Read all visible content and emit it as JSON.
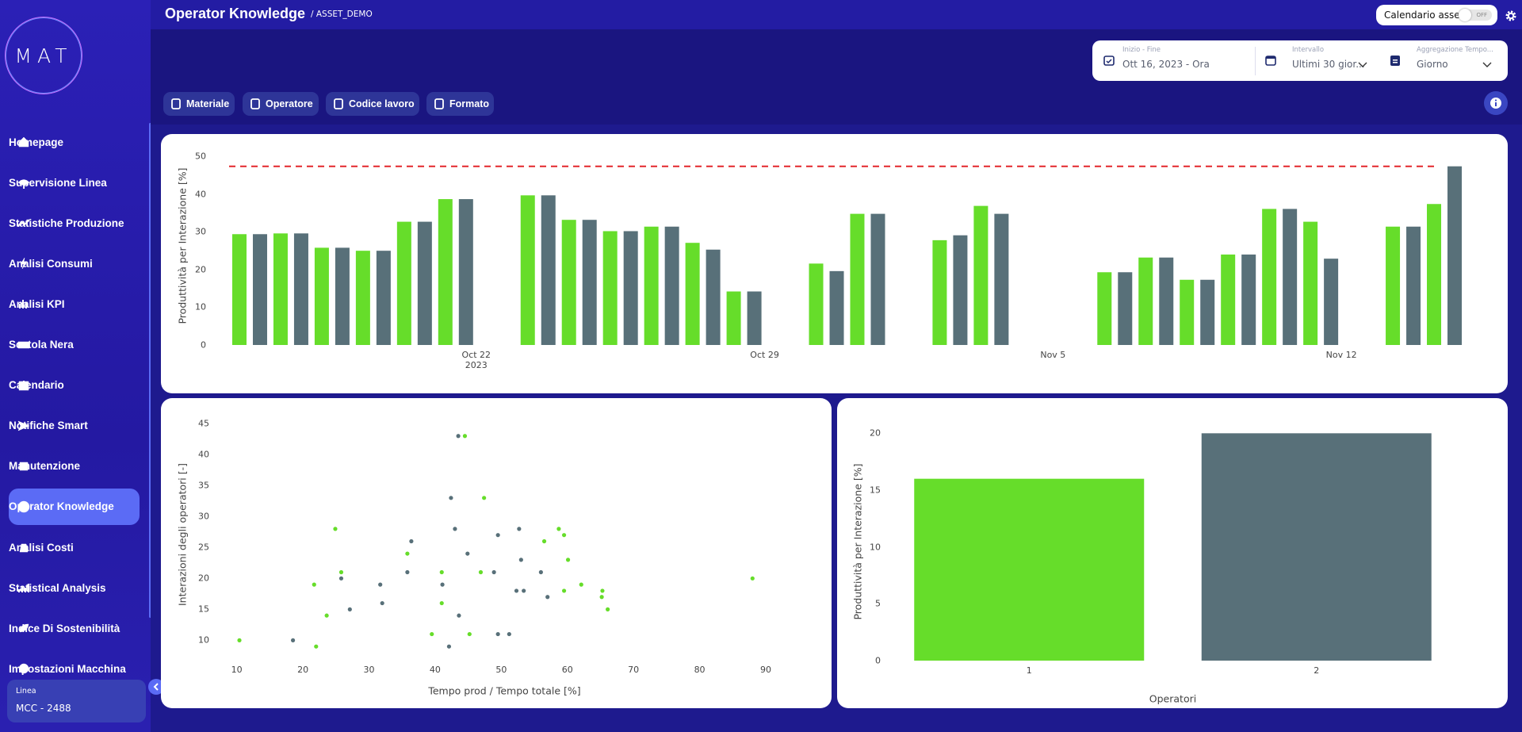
{
  "header": {
    "title": "Operator Knowledge",
    "subtitle": "/ ASSET_DEMO",
    "toggle_label": "Calendario asset",
    "toggle_state": "OFF"
  },
  "sidebar": {
    "logo": "MAT",
    "items": [
      "Homepage",
      "Supervisione Linea",
      "Statistiche Produzione",
      "Analisi Consumi",
      "Analisi KPI",
      "Scatola Nera",
      "Calendario",
      "Notifiche Smart",
      "Manutenzione",
      "Operator Knowledge",
      "Analisi Costi",
      "Statistical Analysis",
      "Indice Di Sostenibilità",
      "Impostazioni Macchina"
    ],
    "active_index": 9,
    "line_label": "Linea",
    "line_value": "MCC - 2488"
  },
  "filters": {
    "date_label": "Inizio - Fine",
    "date_value": "Ott 16, 2023 - Ora",
    "interval_label": "Intervallo",
    "interval_value": "Ultimi 30 gior...",
    "aggregation_label": "Aggregazione Tempo...",
    "aggregation_value": "Giorno"
  },
  "chips": [
    "Materiale",
    "Operatore",
    "Codice lavoro",
    "Formato"
  ],
  "chart_data": [
    {
      "type": "bar",
      "y_label": "Produttività per Interazione [%]",
      "x": [
        "2023-10-16",
        "2023-10-17",
        "2023-10-18",
        "2023-10-19",
        "2023-10-20",
        "2023-10-21",
        "2023-10-23",
        "2023-10-24",
        "2023-10-25",
        "2023-10-26",
        "2023-10-27",
        "2023-10-28",
        "2023-10-30",
        "2023-10-31",
        "2023-11-02",
        "2023-11-03",
        "2023-11-06",
        "2023-11-07",
        "2023-11-08",
        "2023-11-09",
        "2023-11-10",
        "2023-11-11",
        "2023-11-13",
        "2023-11-14"
      ],
      "series": [
        {
          "color": "#66dd2a",
          "values": [
            29.4,
            29.6,
            25.8,
            25.0,
            32.7,
            38.7,
            39.7,
            33.2,
            30.2,
            31.4,
            27.1,
            14.2,
            21.6,
            34.8,
            27.8,
            36.9,
            19.3,
            23.2,
            17.3,
            24.0,
            36.1,
            32.7,
            31.4,
            37.4
          ]
        },
        {
          "color": "#587079",
          "values": [
            29.4,
            29.6,
            25.8,
            25.0,
            32.7,
            38.7,
            39.7,
            33.2,
            30.2,
            31.4,
            25.3,
            14.2,
            19.6,
            34.8,
            29.1,
            34.8,
            19.3,
            23.2,
            17.3,
            24.0,
            36.1,
            22.9,
            31.4,
            47.4
          ]
        }
      ],
      "reference_line": {
        "value": 47.4,
        "color": "#e3262b",
        "style": "dashed"
      },
      "xlim": [
        "2023-10-16",
        "2023-11-15"
      ],
      "xticks": [
        {
          "value": "2023-10-22",
          "label": "Oct 22\n2023"
        },
        {
          "value": "2023-10-29",
          "label": "Oct 29"
        },
        {
          "value": "2023-11-05",
          "label": "Nov 5"
        },
        {
          "value": "2023-11-12",
          "label": "Nov 12"
        }
      ],
      "ylim": [
        0,
        52.6
      ],
      "yticks": [
        0,
        10,
        20,
        30,
        40,
        50
      ],
      "grid": false
    },
    {
      "type": "scatter",
      "x_label": "Tempo prod / Tempo totale [%]",
      "y_label": "Interazioni degli operatori [-]",
      "series": [
        {
          "color": "#66dd2a",
          "x": [
            10.4,
            21.7,
            22.0,
            23.6,
            24.9,
            25.8,
            35.8,
            39.5,
            41.0,
            41.0,
            44.5,
            45.2,
            46.9,
            47.4,
            56.5,
            58.7,
            59.5,
            59.5,
            60.1,
            62.1,
            65.3,
            65.2,
            66.1,
            88.0
          ],
          "values": [
            10,
            19,
            9,
            14,
            28,
            21,
            24,
            11,
            21,
            16,
            43,
            11,
            21,
            33,
            26,
            28,
            27,
            18,
            23,
            19,
            18,
            17,
            15,
            20
          ]
        },
        {
          "color": "#587079",
          "x": [
            18.5,
            25.8,
            27.1,
            31.7,
            32.0,
            35.8,
            36.4,
            41.1,
            42.1,
            42.4,
            43.0,
            43.5,
            43.6,
            44.9,
            48.9,
            49.5,
            49.5,
            51.2,
            52.3,
            52.7,
            53.0,
            53.4,
            56.0,
            57.0
          ],
          "values": [
            10,
            20,
            15,
            19,
            16,
            21,
            26,
            19,
            9,
            33,
            28,
            43,
            14,
            24,
            21,
            27,
            11,
            11,
            18,
            28,
            23,
            18,
            21,
            17
          ]
        }
      ],
      "xlim": [
        8,
        93
      ],
      "xticks": [
        10,
        20,
        30,
        40,
        50,
        60,
        70,
        80,
        90
      ],
      "ylim": [
        8,
        46.3
      ],
      "yticks": [
        10,
        15,
        20,
        25,
        30,
        35,
        40,
        45
      ],
      "grid": false
    },
    {
      "type": "bar",
      "x_label": "Operatori",
      "y_label": "Produttività per Interazione [%]",
      "categories": [
        "1",
        "2"
      ],
      "values": [
        16,
        20
      ],
      "colors": [
        "#66dd2a",
        "#587079"
      ],
      "ylim": [
        0,
        21
      ],
      "yticks": [
        0,
        5,
        10,
        15,
        20
      ],
      "grid": false
    }
  ]
}
